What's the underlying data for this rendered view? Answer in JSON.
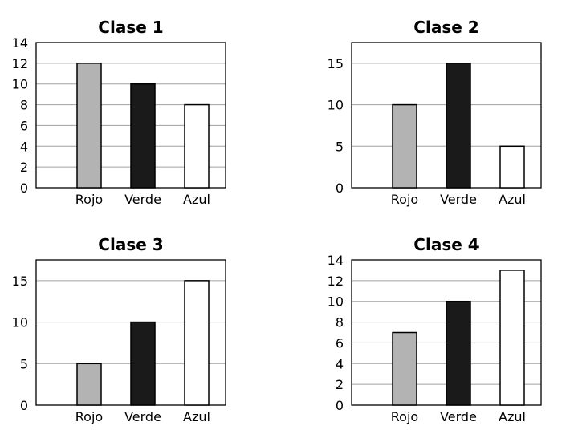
{
  "chart_data": [
    {
      "type": "bar",
      "title": "Clase 1",
      "categories": [
        "Rojo",
        "Verde",
        "Azul"
      ],
      "values": [
        12,
        10,
        8
      ],
      "ylim": [
        0,
        14
      ],
      "yticks": [
        0,
        2,
        4,
        6,
        8,
        10,
        12,
        14
      ],
      "grid": true,
      "colors": [
        "#b3b3b3",
        "#1a1a1a",
        "#ffffff"
      ]
    },
    {
      "type": "bar",
      "title": "Clase 2",
      "categories": [
        "Rojo",
        "Verde",
        "Azul"
      ],
      "values": [
        10,
        15,
        5
      ],
      "ylim": [
        0,
        17.5
      ],
      "yticks": [
        0,
        5,
        10,
        15
      ],
      "grid": true,
      "colors": [
        "#b3b3b3",
        "#1a1a1a",
        "#ffffff"
      ]
    },
    {
      "type": "bar",
      "title": "Clase 3",
      "categories": [
        "Rojo",
        "Verde",
        "Azul"
      ],
      "values": [
        5,
        10,
        15
      ],
      "ylim": [
        0,
        17.5
      ],
      "yticks": [
        0,
        5,
        10,
        15
      ],
      "grid": true,
      "colors": [
        "#b3b3b3",
        "#1a1a1a",
        "#ffffff"
      ]
    },
    {
      "type": "bar",
      "title": "Clase 4",
      "categories": [
        "Rojo",
        "Verde",
        "Azul"
      ],
      "values": [
        7,
        10,
        13
      ],
      "ylim": [
        0,
        14
      ],
      "yticks": [
        0,
        2,
        4,
        6,
        8,
        10,
        12,
        14
      ],
      "grid": true,
      "colors": [
        "#b3b3b3",
        "#1a1a1a",
        "#ffffff"
      ]
    }
  ]
}
